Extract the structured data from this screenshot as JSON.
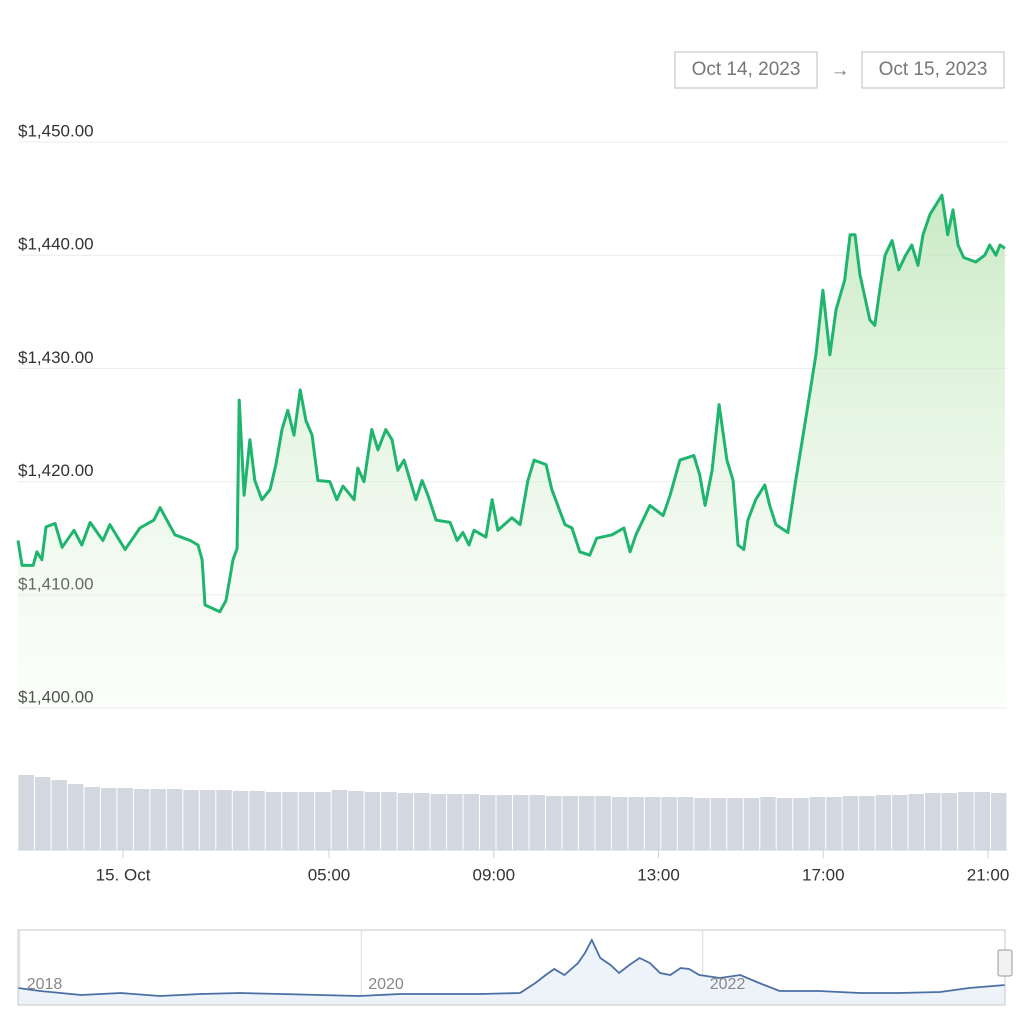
{
  "date_range": {
    "from": "Oct 14, 2023",
    "arrow": "→",
    "to": "Oct 15, 2023"
  },
  "chart_data": {
    "type": "line",
    "color": "#1fb56e",
    "x": [
      -2.55,
      -2.45,
      -2.18,
      -2.09,
      -1.97,
      -1.87,
      -1.65,
      -1.48,
      -1.19,
      -1.0,
      -0.8,
      -0.49,
      -0.32,
      0.05,
      0.41,
      0.75,
      0.9,
      1.26,
      1.63,
      1.82,
      1.92,
      1.99,
      2.35,
      2.5,
      2.67,
      2.77,
      2.82,
      2.94,
      3.08,
      3.2,
      3.37,
      3.57,
      3.71,
      3.86,
      4.0,
      4.15,
      4.3,
      4.44,
      4.59,
      4.73,
      5.02,
      5.19,
      5.34,
      5.61,
      5.7,
      5.85,
      6.04,
      6.19,
      6.38,
      6.53,
      6.67,
      6.82,
      7.11,
      7.26,
      7.4,
      7.6,
      7.94,
      8.11,
      8.25,
      8.4,
      8.52,
      8.81,
      8.96,
      9.1,
      9.44,
      9.64,
      9.83,
      9.98,
      10.27,
      10.41,
      10.73,
      10.9,
      11.09,
      11.33,
      11.5,
      11.87,
      12.16,
      12.31,
      12.45,
      12.79,
      13.11,
      13.28,
      13.52,
      13.86,
      14.0,
      14.13,
      14.3,
      14.47,
      14.66,
      14.81,
      14.93,
      15.07,
      15.17,
      15.36,
      15.58,
      15.7,
      15.85,
      16.14,
      16.33,
      16.43,
      16.63,
      16.82,
      16.99,
      17.16,
      17.31,
      17.52,
      17.65,
      17.77,
      17.89,
      18.13,
      18.25,
      18.37,
      18.5,
      18.67,
      18.83,
      19.0,
      19.15,
      19.3,
      19.42,
      19.59,
      19.88,
      20.02,
      20.15,
      20.27,
      20.41,
      20.7,
      20.92,
      21.04,
      21.19,
      21.29,
      21.41
    ],
    "values": [
      1414.8,
      1412.6,
      1412.6,
      1413.8,
      1413.1,
      1416.0,
      1416.3,
      1414.2,
      1415.7,
      1414.4,
      1416.4,
      1414.8,
      1416.2,
      1414.0,
      1415.9,
      1416.6,
      1417.7,
      1415.3,
      1414.8,
      1414.4,
      1413.1,
      1409.1,
      1408.5,
      1409.5,
      1413.1,
      1414.1,
      1427.2,
      1418.8,
      1423.7,
      1420.1,
      1418.4,
      1419.3,
      1421.5,
      1424.6,
      1426.3,
      1424.1,
      1428.1,
      1425.4,
      1424.1,
      1420.1,
      1420.0,
      1418.4,
      1419.6,
      1418.4,
      1421.2,
      1420.0,
      1424.6,
      1422.8,
      1424.6,
      1423.7,
      1421.0,
      1421.9,
      1418.4,
      1420.1,
      1418.8,
      1416.6,
      1416.4,
      1414.8,
      1415.5,
      1414.4,
      1415.7,
      1415.1,
      1418.4,
      1415.7,
      1416.8,
      1416.2,
      1420.1,
      1421.9,
      1421.5,
      1419.3,
      1416.2,
      1415.9,
      1413.8,
      1413.5,
      1415.0,
      1415.3,
      1415.9,
      1413.8,
      1415.3,
      1417.9,
      1417.0,
      1418.8,
      1421.9,
      1422.3,
      1420.6,
      1417.9,
      1421.0,
      1426.8,
      1421.9,
      1420.1,
      1414.4,
      1414.0,
      1416.6,
      1418.4,
      1419.7,
      1417.9,
      1416.2,
      1415.5,
      1420.1,
      1422.3,
      1426.8,
      1431.2,
      1436.9,
      1431.2,
      1435.2,
      1437.8,
      1441.8,
      1441.8,
      1438.3,
      1434.3,
      1433.8,
      1436.9,
      1440.0,
      1441.3,
      1438.7,
      1440.0,
      1440.9,
      1439.1,
      1441.8,
      1443.6,
      1445.3,
      1441.8,
      1444.0,
      1440.9,
      1439.8,
      1439.4,
      1440.0,
      1440.9,
      1440.0,
      1440.9,
      1440.6
    ],
    "xlim": [
      -2.55,
      21.46
    ],
    "xticks": [
      {
        "value": 0,
        "label": "15. Oct"
      },
      {
        "value": 5,
        "label": "05:00"
      },
      {
        "value": 9,
        "label": "09:00"
      },
      {
        "value": 13,
        "label": "13:00"
      },
      {
        "value": 17,
        "label": "17:00"
      },
      {
        "value": 21,
        "label": "21:00"
      }
    ],
    "ylim": [
      1400,
      1450
    ],
    "yticks": [
      {
        "value": 1400,
        "label": "$1,400.00"
      },
      {
        "value": 1410,
        "label": "$1,410.00"
      },
      {
        "value": 1420,
        "label": "$1,420.00"
      },
      {
        "value": 1430,
        "label": "$1,430.00"
      },
      {
        "value": 1440,
        "label": "$1,440.00"
      },
      {
        "value": 1450,
        "label": "$1,450.00"
      }
    ],
    "grid": true,
    "volume": {
      "type": "bar",
      "color": "#d3d8e0",
      "values": [
        75,
        73,
        70,
        66,
        63,
        62,
        62,
        61,
        61,
        61,
        60,
        60,
        60,
        59,
        59,
        58,
        58,
        58,
        58,
        60,
        59,
        58,
        58,
        57,
        57,
        56,
        56,
        56,
        55,
        55,
        55,
        55,
        54,
        54,
        54,
        54,
        53,
        53,
        53,
        53,
        53,
        52,
        52,
        52,
        52,
        53,
        52,
        52,
        53,
        53,
        54,
        54,
        55,
        55,
        56,
        57,
        57,
        58,
        58,
        57
      ]
    },
    "navigator": {
      "type": "line",
      "color": "#4a6fa5",
      "x": [
        2017.99,
        2018.12,
        2018.36,
        2018.59,
        2018.82,
        2019.06,
        2019.29,
        2019.53,
        2019.76,
        2019.99,
        2020.23,
        2020.46,
        2020.7,
        2020.93,
        2021.02,
        2021.08,
        2021.13,
        2021.19,
        2021.27,
        2021.31,
        2021.35,
        2021.4,
        2021.46,
        2021.51,
        2021.57,
        2021.63,
        2021.69,
        2021.75,
        2021.81,
        2021.87,
        2021.92,
        2021.98,
        2022.1,
        2022.22,
        2022.33,
        2022.45,
        2022.68,
        2022.92,
        2023.15,
        2023.39,
        2023.56,
        2023.77
      ],
      "values": [
        10,
        7,
        3,
        5,
        2,
        4,
        5,
        4,
        3,
        2,
        4,
        4,
        4,
        5,
        15,
        23,
        29,
        23,
        35,
        45,
        58,
        40,
        33,
        25,
        33,
        40,
        35,
        25,
        23,
        30,
        29,
        23,
        20,
        23,
        15,
        7,
        7,
        5,
        5,
        6,
        10,
        13
      ],
      "xlim": [
        2017.99,
        2023.77
      ],
      "xticks": [
        2018,
        2020,
        2022
      ]
    }
  }
}
